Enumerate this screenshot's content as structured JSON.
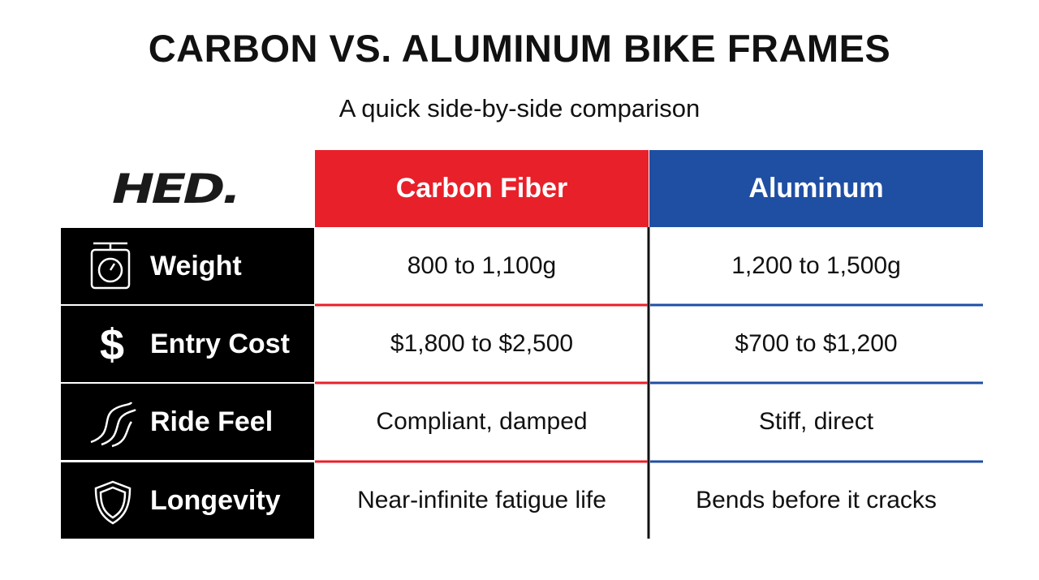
{
  "header": {
    "title": "CARBON VS. ALUMINUM BIKE FRAMES",
    "subtitle": "A quick side-by-side comparison",
    "logo": "HED."
  },
  "table": {
    "columns": [
      "Carbon Fiber",
      "Aluminum"
    ],
    "rows": [
      {
        "label": "Weight",
        "values": [
          "800 to 1,100g",
          "1,200 to 1,500g"
        ]
      },
      {
        "label": "Entry Cost",
        "values": [
          "$1,800 to $2,500",
          "$700 to $1,200"
        ]
      },
      {
        "label": "Ride Feel",
        "values": [
          "Compliant, damped",
          "Stiff, direct"
        ]
      },
      {
        "label": "Longevity",
        "values": [
          "Near-infinite fatigue life",
          "Bends before it cracks"
        ]
      }
    ]
  }
}
